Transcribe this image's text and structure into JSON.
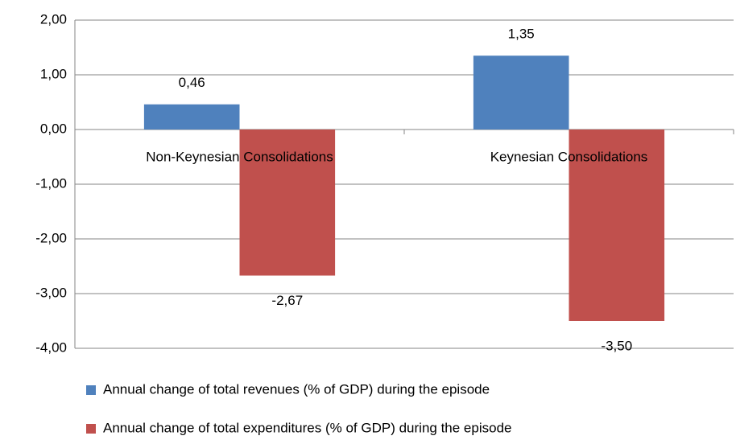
{
  "chart_data": {
    "type": "bar",
    "categories": [
      "Non-Keynesian Consolidations",
      "Keynesian Consolidations"
    ],
    "series": [
      {
        "name": "Annual change of total revenues (% of GDP) during the episode",
        "color": "#4f81bd",
        "values": [
          0.46,
          1.35
        ],
        "value_labels": [
          "0,46",
          "1,35"
        ]
      },
      {
        "name": "Annual change of total expenditures (% of GDP) during the episode",
        "color": "#c0504d",
        "values": [
          -2.67,
          -3.5
        ],
        "value_labels": [
          "-2,67",
          "-3,50"
        ]
      }
    ],
    "ylim": [
      -4,
      2
    ],
    "yticks": [
      {
        "value": -4,
        "label": "-4,00"
      },
      {
        "value": -3,
        "label": "-3,00"
      },
      {
        "value": -2,
        "label": "-2,00"
      },
      {
        "value": -1,
        "label": "-1,00"
      },
      {
        "value": 0,
        "label": "0,00"
      },
      {
        "value": 1,
        "label": "1,00"
      },
      {
        "value": 2,
        "label": "2,00"
      }
    ],
    "grid": true,
    "legend": "bottom"
  }
}
